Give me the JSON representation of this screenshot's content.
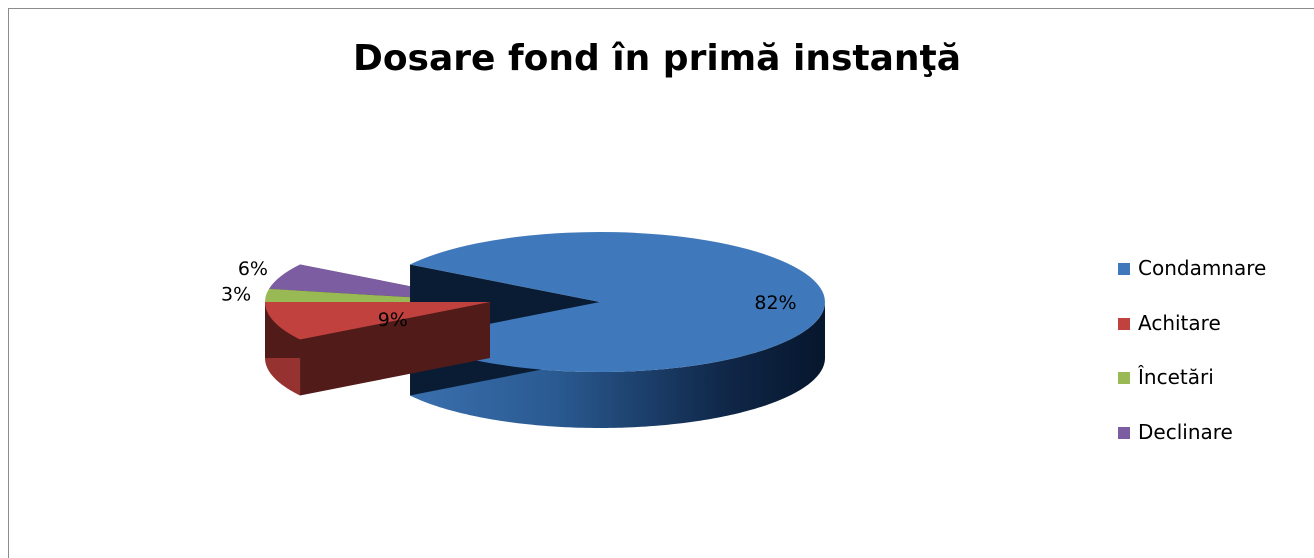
{
  "chart_data": {
    "type": "pie",
    "style": "3d-exploded",
    "title": "Dosare fond în primă instanţă",
    "slices": [
      {
        "name": "Condamnare",
        "value": 82,
        "label": "82%",
        "color": "#3f79bb"
      },
      {
        "name": "Achitare",
        "value": 9,
        "label": "9%",
        "color": "#c0413d"
      },
      {
        "name": "Încetări",
        "value": 3,
        "label": "3%",
        "color": "#98b954"
      },
      {
        "name": "Declinare",
        "value": 6,
        "label": "6%",
        "color": "#7d5da1"
      }
    ],
    "legend": "right"
  }
}
